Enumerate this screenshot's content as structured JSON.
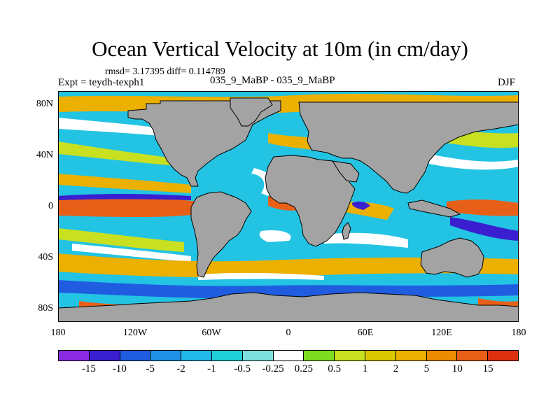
{
  "title": "Ocean Vertical Velocity at 10m (in cm/day)",
  "stats": "rmsd= 3.17395 diff= 0.114789",
  "expt": "Expt = teydh-texph1",
  "subtitle": "035_9_MaBP - 035_9_MaBP",
  "season": "DJF",
  "y_axis": {
    "ticks": [
      "80N",
      "40N",
      "0",
      "40S",
      "80S"
    ]
  },
  "x_axis": {
    "ticks": [
      "180",
      "120W",
      "60W",
      "0",
      "60E",
      "120E",
      "180"
    ]
  },
  "colorbar": {
    "colors": [
      "#8a2be2",
      "#3a1fd0",
      "#1f5ce0",
      "#1e90e6",
      "#22b8e8",
      "#20d0d8",
      "#7ee0dc",
      "#ffffff",
      "#7ddc20",
      "#c8e020",
      "#dcc800",
      "#ecb000",
      "#ec8c00",
      "#e86018",
      "#dc3010"
    ],
    "labels": [
      "-15",
      "-10",
      "-5",
      "-2",
      "-1",
      "-0.5",
      "-0.25",
      "0.25",
      "0.5",
      "1",
      "2",
      "5",
      "10",
      "15"
    ]
  },
  "map_colors": {
    "land": "#a3a3a3",
    "base_ocean": "#23c3e3",
    "frame": "#000000"
  }
}
